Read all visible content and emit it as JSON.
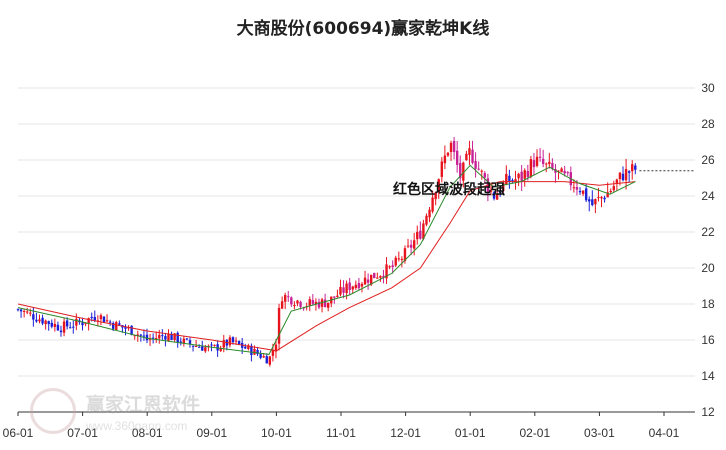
{
  "title": "大商股份(600694)赢家乾坤K线",
  "annotation": "红色区域波段起强",
  "watermark": {
    "name": "赢家江恩软件",
    "url": "www.360gann.com"
  },
  "colors": {
    "up": "#e8141d",
    "down": "#1a20d8",
    "magenta": "#c82096",
    "ma_short": "#2a8a2a",
    "ma_long": "#e02020",
    "grid": "#e6e6e6"
  },
  "chart_data": {
    "type": "candlestick",
    "title": "大商股份(600694)赢家乾坤K线",
    "x_ticks": [
      "06-01",
      "07-01",
      "08-01",
      "09-01",
      "10-01",
      "11-01",
      "12-01",
      "01-01",
      "02-01",
      "03-01",
      "04-01"
    ],
    "y_ticks": [
      "12",
      "14",
      "16",
      "18",
      "20",
      "22",
      "24",
      "26",
      "28",
      "30"
    ],
    "ylim": [
      12,
      31
    ],
    "grid": true,
    "price_path": [
      [
        "06-01",
        17.7
      ],
      [
        "06-11",
        17.2
      ],
      [
        "06-21",
        16.7
      ],
      [
        "07-01",
        17.0
      ],
      [
        "07-08",
        17.4
      ],
      [
        "07-15",
        16.9
      ],
      [
        "07-25",
        16.5
      ],
      [
        "08-01",
        16.0
      ],
      [
        "08-10",
        16.3
      ],
      [
        "08-20",
        15.8
      ],
      [
        "09-01",
        15.5
      ],
      [
        "09-10",
        15.9
      ],
      [
        "09-20",
        15.4
      ],
      [
        "09-28",
        14.9
      ],
      [
        "10-01",
        16.0
      ],
      [
        "10-03",
        18.5
      ],
      [
        "10-08",
        18.3
      ],
      [
        "10-15",
        18.0
      ],
      [
        "10-25",
        18.1
      ],
      [
        "11-05",
        19.0
      ],
      [
        "11-15",
        19.5
      ],
      [
        "11-25",
        20.0
      ],
      [
        "12-01",
        20.8
      ],
      [
        "12-08",
        22.0
      ],
      [
        "12-15",
        24.5
      ],
      [
        "12-22",
        27.0
      ],
      [
        "12-27",
        25.0
      ],
      [
        "01-01",
        26.5
      ],
      [
        "01-05",
        25.5
      ],
      [
        "01-12",
        24.0
      ],
      [
        "01-18",
        24.8
      ],
      [
        "01-25",
        25.0
      ],
      [
        "02-01",
        26.0
      ],
      [
        "02-08",
        25.5
      ],
      [
        "02-15",
        25.0
      ],
      [
        "02-22",
        24.5
      ],
      [
        "02-28",
        23.5
      ],
      [
        "03-06",
        24.3
      ],
      [
        "03-12",
        25.2
      ],
      [
        "03-18",
        25.5
      ]
    ],
    "ma_short_path": [
      [
        "06-01",
        17.8
      ],
      [
        "07-01",
        17.0
      ],
      [
        "08-01",
        16.1
      ],
      [
        "09-01",
        15.6
      ],
      [
        "09-28",
        15.2
      ],
      [
        "10-08",
        17.6
      ],
      [
        "10-20",
        18.0
      ],
      [
        "11-05",
        18.5
      ],
      [
        "11-25",
        19.7
      ],
      [
        "12-08",
        21.3
      ],
      [
        "12-22",
        24.5
      ],
      [
        "01-01",
        25.7
      ],
      [
        "01-12",
        24.5
      ],
      [
        "01-25",
        24.8
      ],
      [
        "02-08",
        25.6
      ],
      [
        "02-22",
        24.7
      ],
      [
        "03-06",
        24.1
      ],
      [
        "03-18",
        24.8
      ]
    ],
    "ma_long_path": [
      [
        "06-01",
        18.0
      ],
      [
        "07-01",
        17.2
      ],
      [
        "08-01",
        16.5
      ],
      [
        "09-01",
        16.0
      ],
      [
        "10-01",
        15.4
      ],
      [
        "10-20",
        16.8
      ],
      [
        "11-05",
        17.8
      ],
      [
        "11-25",
        18.9
      ],
      [
        "12-08",
        20.0
      ],
      [
        "12-22",
        22.5
      ],
      [
        "01-01",
        24.3
      ],
      [
        "01-15",
        24.8
      ],
      [
        "02-01",
        24.8
      ],
      [
        "02-15",
        24.8
      ],
      [
        "03-01",
        24.6
      ],
      [
        "03-18",
        24.8
      ]
    ],
    "last_price": 25.4,
    "annotation": {
      "text": "红色区域波段起强",
      "date": "12-28",
      "value": 24.4
    }
  }
}
